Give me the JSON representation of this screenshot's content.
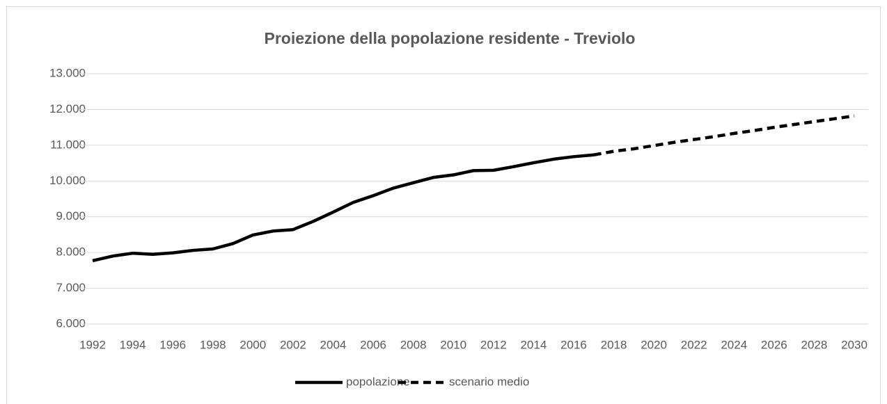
{
  "chart_data": {
    "type": "line",
    "title": "Proiezione della popolazione residente - Treviolo",
    "x": [
      1992,
      1993,
      1994,
      1995,
      1996,
      1997,
      1998,
      1999,
      2000,
      2001,
      2002,
      2003,
      2004,
      2005,
      2006,
      2007,
      2008,
      2009,
      2010,
      2011,
      2012,
      2013,
      2014,
      2015,
      2016,
      2017,
      2018,
      2019,
      2020,
      2021,
      2022,
      2023,
      2024,
      2025,
      2026,
      2027,
      2028,
      2029,
      2030
    ],
    "series": [
      {
        "name": "popolazione",
        "color": "#000000",
        "style": "solid",
        "values": [
          7770,
          7900,
          7980,
          7950,
          7990,
          8060,
          8100,
          8250,
          8490,
          8600,
          8640,
          8870,
          9130,
          9400,
          9590,
          9800,
          9950,
          10100,
          10170,
          10290,
          10300,
          10400,
          10510,
          10610,
          10680,
          10730,
          null,
          null,
          null,
          null,
          null,
          null,
          null,
          null,
          null,
          null,
          null,
          null,
          null
        ]
      },
      {
        "name": "scenario medio",
        "color": "#000000",
        "style": "dashed",
        "values": [
          null,
          null,
          null,
          null,
          null,
          null,
          null,
          null,
          null,
          null,
          null,
          null,
          null,
          null,
          null,
          null,
          null,
          null,
          null,
          null,
          null,
          null,
          null,
          null,
          null,
          10730,
          10830,
          10900,
          10990,
          11080,
          11160,
          11240,
          11330,
          11410,
          11500,
          11580,
          11660,
          11740,
          11820
        ]
      }
    ],
    "xlim": [
      1992,
      2030
    ],
    "xticks": [
      1992,
      1994,
      1996,
      1998,
      2000,
      2002,
      2004,
      2006,
      2008,
      2010,
      2012,
      2014,
      2016,
      2018,
      2020,
      2022,
      2024,
      2026,
      2028,
      2030
    ],
    "ylim": [
      6000,
      13000
    ],
    "yticks": [
      {
        "value": 6000,
        "label": "6.000"
      },
      {
        "value": 7000,
        "label": "7.000"
      },
      {
        "value": 8000,
        "label": "8.000"
      },
      {
        "value": 9000,
        "label": "9.000"
      },
      {
        "value": 10000,
        "label": "10.000"
      },
      {
        "value": 11000,
        "label": "11.000"
      },
      {
        "value": 12000,
        "label": "12.000"
      },
      {
        "value": 13000,
        "label": "13.000"
      }
    ],
    "grid": true,
    "legend": "bottom"
  }
}
